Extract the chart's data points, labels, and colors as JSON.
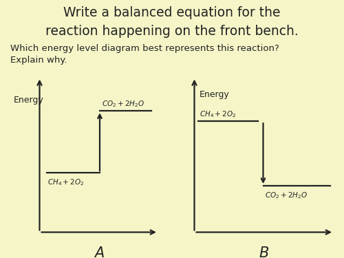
{
  "background_color": "#f5f5c8",
  "title_line1": "Write a balanced equation for the",
  "title_line2": "reaction happening on the front bench.",
  "subtitle_line1": "Which energy level diagram best represents this reaction?",
  "subtitle_line2": "Explain why.",
  "title_fontsize": 13.5,
  "subtitle_fontsize": 9.5,
  "font_family": "Comic Sans MS",
  "line_color": "#222222",
  "line_width": 1.6,
  "label_fontsize": 16
}
